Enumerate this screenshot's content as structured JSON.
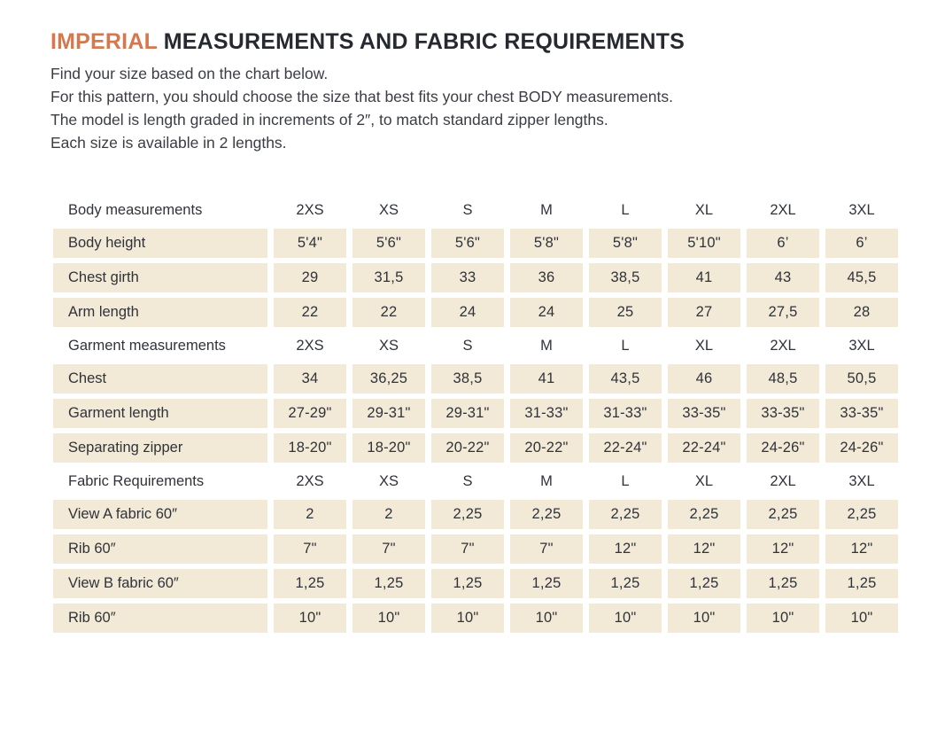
{
  "title": {
    "highlight": "IMPERIAL",
    "rest": "MEASUREMENTS AND FABRIC REQUIREMENTS"
  },
  "intro": {
    "lines": [
      "Find your size based on the chart below.",
      "For this pattern, you should choose the size that best fits your chest BODY measurements.",
      "The model is length graded in increments of 2″, to match standard zipper lengths.",
      "Each size is available in 2 lengths."
    ]
  },
  "colors": {
    "accent": "#D4794F",
    "cell_background": "#F2E9D7",
    "text": "#2F333A"
  },
  "table": {
    "size_columns": [
      "2XS",
      "XS",
      "S",
      "M",
      "L",
      "XL",
      "2XL",
      "3XL"
    ],
    "sections": [
      {
        "header": "Body measurements",
        "rows": [
          {
            "label": "Body height",
            "values": [
              "5'4\"",
              "5'6\"",
              "5'6\"",
              "5'8\"",
              "5'8\"",
              "5'10\"",
              "6’",
              "6’"
            ]
          },
          {
            "label": "Chest girth",
            "values": [
              "29",
              "31,5",
              "33",
              "36",
              "38,5",
              "41",
              "43",
              "45,5"
            ]
          },
          {
            "label": "Arm length",
            "values": [
              "22",
              "22",
              "24",
              "24",
              "25",
              "27",
              "27,5",
              "28"
            ]
          }
        ]
      },
      {
        "header": "Garment measurements",
        "rows": [
          {
            "label": "Chest",
            "values": [
              "34",
              "36,25",
              "38,5",
              "41",
              "43,5",
              "46",
              "48,5",
              "50,5"
            ]
          },
          {
            "label": "Garment length",
            "values": [
              "27-29\"",
              "29-31\"",
              "29-31\"",
              "31-33\"",
              "31-33\"",
              "33-35\"",
              "33-35\"",
              "33-35\""
            ]
          },
          {
            "label": "Separating zipper",
            "values": [
              "18-20\"",
              "18-20\"",
              "20-22\"",
              "20-22\"",
              "22-24\"",
              "22-24\"",
              "24-26\"",
              "24-26\""
            ]
          }
        ]
      },
      {
        "header": "Fabric Requirements",
        "rows": [
          {
            "label": "View A fabric 60″",
            "values": [
              "2",
              "2",
              "2,25",
              "2,25",
              "2,25",
              "2,25",
              "2,25",
              "2,25"
            ]
          },
          {
            "label": "Rib 60″",
            "values": [
              "7\"",
              "7\"",
              "7\"",
              "7\"",
              "12\"",
              "12\"",
              "12\"",
              "12\""
            ]
          },
          {
            "label": "View B fabric 60″",
            "values": [
              "1,25",
              "1,25",
              "1,25",
              "1,25",
              "1,25",
              "1,25",
              "1,25",
              "1,25"
            ]
          },
          {
            "label": "Rib 60″",
            "values": [
              "10\"",
              "10\"",
              "10\"",
              "10\"",
              "10\"",
              "10\"",
              "10\"",
              "10\""
            ]
          }
        ]
      }
    ]
  }
}
